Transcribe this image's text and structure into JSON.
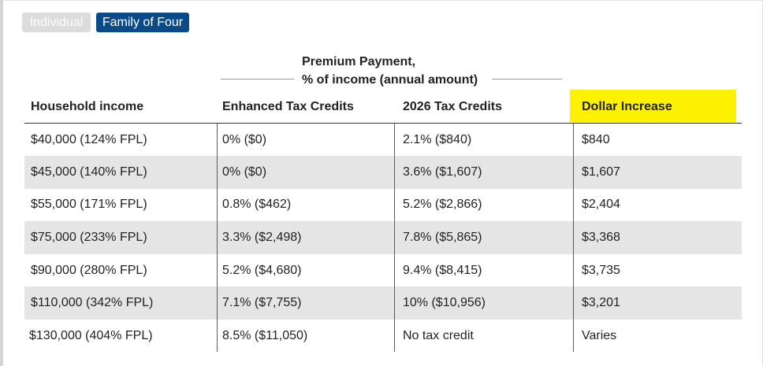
{
  "toggles": {
    "individual_label": "Individual",
    "family_label": "Family of Four",
    "active": "Family of Four"
  },
  "group_header": {
    "line1": "Premium Payment,",
    "line2": "% of income (annual amount)"
  },
  "columns": {
    "household_income": "Household income",
    "enhanced": "Enhanced Tax Credits",
    "credits_2026": "2026 Tax Credits",
    "dollar_increase": "Dollar Increase"
  },
  "highlight_color": "#fff200",
  "accent_color": "#0a4a86",
  "rows": [
    {
      "income": "$40,000 (124% FPL)",
      "enhanced": "0% ($0)",
      "credits_2026": "2.1% ($840)",
      "increase": "$840"
    },
    {
      "income": "$45,000 (140% FPL)",
      "enhanced": "0% ($0)",
      "credits_2026": "3.6% ($1,607)",
      "increase": "$1,607"
    },
    {
      "income": "$55,000 (171% FPL)",
      "enhanced": "0.8% ($462)",
      "credits_2026": "5.2% ($2,866)",
      "increase": "$2,404"
    },
    {
      "income": "$75,000 (233% FPL)",
      "enhanced": "3.3% ($2,498)",
      "credits_2026": "7.8% ($5,865)",
      "increase": "$3,368"
    },
    {
      "income": "$90,000 (280% FPL)",
      "enhanced": "5.2% ($4,680)",
      "credits_2026": "9.4% ($8,415)",
      "increase": "$3,735"
    },
    {
      "income": "$110,000 (342% FPL)",
      "enhanced": "7.1% ($7,755)",
      "credits_2026": "10% ($10,956)",
      "increase": "$3,201"
    },
    {
      "income": "$130,000 (404% FPL)",
      "enhanced": "8.5% ($11,050)",
      "credits_2026": "No tax credit",
      "increase": "Varies"
    }
  ]
}
